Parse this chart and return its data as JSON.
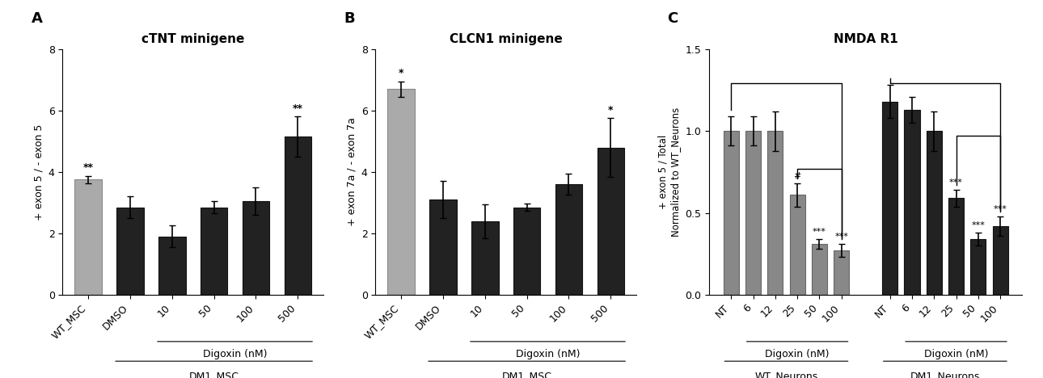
{
  "panel_A": {
    "title": "cTNT minigene",
    "ylabel": "+ exon 5 / - exon 5",
    "categories": [
      "WT_MSC",
      "DMSO",
      "10",
      "50",
      "100",
      "500"
    ],
    "values": [
      3.75,
      2.85,
      1.9,
      2.85,
      3.05,
      5.15
    ],
    "errors": [
      0.12,
      0.35,
      0.35,
      0.2,
      0.45,
      0.65
    ],
    "colors": [
      "#aaaaaa",
      "#222222",
      "#222222",
      "#222222",
      "#222222",
      "#222222"
    ],
    "sig_labels": [
      "**",
      "",
      "",
      "",
      "",
      "**"
    ],
    "ylim": [
      0,
      8
    ],
    "yticks": [
      0,
      2,
      4,
      6,
      8
    ]
  },
  "panel_B": {
    "title": "CLCN1 minigene",
    "ylabel": "+ exon 7a / - exon 7a",
    "categories": [
      "WT_MSC",
      "DMSO",
      "10",
      "50",
      "100",
      "500"
    ],
    "values": [
      6.7,
      3.1,
      2.4,
      2.85,
      3.6,
      4.8
    ],
    "errors": [
      0.25,
      0.6,
      0.55,
      0.12,
      0.35,
      0.95
    ],
    "colors": [
      "#aaaaaa",
      "#222222",
      "#222222",
      "#222222",
      "#222222",
      "#222222"
    ],
    "sig_labels": [
      "*",
      "",
      "",
      "",
      "",
      "*"
    ],
    "ylim": [
      0,
      8
    ],
    "yticks": [
      0,
      2,
      4,
      6,
      8
    ]
  },
  "panel_C": {
    "title": "NMDA R1",
    "ylabel": "+ exon 5 / Total\nNormalized to WT_Neurons",
    "categories_wt": [
      "NT",
      "6",
      "12",
      "25",
      "50",
      "100"
    ],
    "categories_dm1": [
      "NT",
      "6",
      "12",
      "25",
      "50",
      "100"
    ],
    "values_wt": [
      1.0,
      1.0,
      1.0,
      0.61,
      0.31,
      0.27
    ],
    "errors_wt": [
      0.09,
      0.09,
      0.12,
      0.07,
      0.03,
      0.04
    ],
    "values_dm1": [
      1.18,
      1.13,
      1.0,
      0.59,
      0.34,
      0.42
    ],
    "errors_dm1": [
      0.1,
      0.08,
      0.12,
      0.05,
      0.04,
      0.06
    ],
    "colors_wt": "#888888",
    "colors_dm1": "#222222",
    "sig_wt": [
      "",
      "",
      "",
      "#",
      "***",
      "***"
    ],
    "sig_dm1": [
      "",
      "",
      "",
      "***",
      "***",
      "***"
    ],
    "ylim": [
      0.0,
      1.5
    ],
    "yticks": [
      0.0,
      0.5,
      1.0,
      1.5
    ]
  },
  "bg_color": "#ffffff"
}
